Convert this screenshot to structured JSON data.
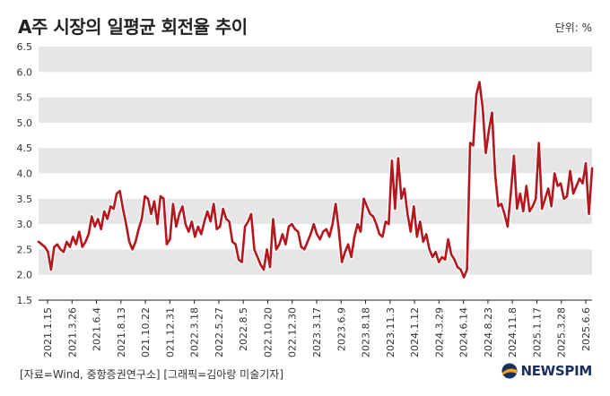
{
  "header": {
    "title": "A주 시장의 일평균 회전율 추이",
    "unit": "단위: %"
  },
  "footer": {
    "source": "[자료=Wind, 중항증권연구소] [그래픽=김아랑 미술기자]",
    "logo_text": "NEWSPIM"
  },
  "colors": {
    "line": "#b5171e",
    "line_outline": "#ffffff",
    "band": "#e6e6e6",
    "axis": "#222222"
  },
  "chart_data": {
    "type": "line",
    "title": "A주 시장의 일평균 회전율 추이",
    "xlabel": "",
    "ylabel": "",
    "ylim": [
      1.5,
      6.5
    ],
    "y_ticks": [
      "1.5",
      "2.0",
      "2.5",
      "3.0",
      "3.5",
      "4.0",
      "4.5",
      "5.0",
      "5.5",
      "6.0",
      "6.5"
    ],
    "grid": "alternating horizontal bands",
    "x_tick_labels": [
      "2021.1.15",
      "2021.3.26",
      "2021.6.4",
      "2021.8.13",
      "2021.10.22",
      "2021.12.31",
      "2022.3.18",
      "2022.5.27",
      "2022.8.5",
      "2022.10.20",
      "2022.12.30",
      "2023.3.17",
      "2023.6.9",
      "2023.8.18",
      "2023.11.3",
      "2024.1.12",
      "2024.3.29",
      "2024.6.14",
      "2024.8.23",
      "2024.11.8",
      "2025.1.17",
      "2025.3.28",
      "2025.6.6"
    ],
    "series": [
      {
        "values": [
          2.65,
          2.6,
          2.55,
          2.45,
          2.1,
          2.55,
          2.6,
          2.5,
          2.45,
          2.65,
          2.55,
          2.75,
          2.6,
          2.85,
          2.55,
          2.65,
          2.8,
          3.15,
          2.95,
          3.1,
          2.9,
          3.25,
          3.1,
          3.35,
          3.3,
          3.6,
          3.65,
          3.3,
          3.0,
          2.65,
          2.5,
          2.65,
          2.9,
          3.1,
          3.55,
          3.5,
          3.2,
          3.45,
          3.0,
          3.55,
          3.5,
          2.6,
          2.7,
          3.4,
          2.95,
          3.2,
          3.35,
          3.0,
          2.85,
          3.05,
          2.75,
          2.95,
          2.8,
          3.05,
          3.25,
          3.05,
          3.4,
          2.9,
          2.95,
          3.3,
          3.1,
          3.05,
          2.65,
          2.6,
          2.3,
          2.25,
          2.95,
          3.05,
          3.2,
          2.5,
          2.35,
          2.2,
          2.1,
          2.5,
          2.15,
          3.1,
          2.5,
          2.6,
          2.8,
          2.6,
          2.95,
          3.0,
          2.9,
          2.85,
          2.55,
          2.5,
          2.65,
          2.8,
          3.0,
          2.8,
          2.7,
          2.85,
          2.9,
          2.75,
          3.0,
          3.4,
          2.9,
          2.25,
          2.45,
          2.6,
          2.35,
          2.75,
          3.0,
          2.85,
          3.5,
          3.35,
          3.2,
          3.15,
          3.0,
          2.8,
          2.75,
          3.05,
          3.0,
          4.25,
          3.3,
          4.3,
          3.5,
          3.7,
          3.2,
          2.85,
          3.35,
          2.75,
          3.05,
          2.65,
          2.8,
          2.5,
          2.35,
          2.45,
          2.25,
          2.35,
          2.3,
          2.7,
          2.4,
          2.3,
          2.15,
          2.1,
          1.95,
          2.1,
          4.6,
          4.55,
          5.55,
          5.8,
          5.3,
          4.4,
          4.85,
          5.2,
          4.0,
          3.35,
          3.4,
          3.2,
          2.95,
          3.6,
          4.35,
          3.3,
          3.6,
          3.25,
          3.75,
          3.25,
          3.35,
          3.5,
          4.6,
          3.3,
          3.5,
          3.7,
          3.35,
          4.0,
          3.75,
          3.8,
          3.5,
          3.55,
          4.05,
          3.6,
          3.75,
          3.9,
          3.8,
          4.2,
          3.2,
          4.1
        ]
      }
    ]
  }
}
